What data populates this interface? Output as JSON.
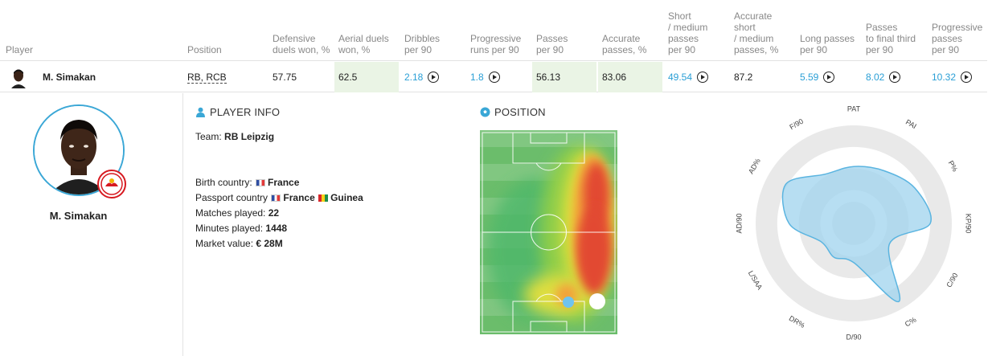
{
  "table": {
    "headers": {
      "player": "Player",
      "position": "Position",
      "defensive_duels": [
        "Defensive",
        "duels won, %"
      ],
      "aerial_duels": [
        "Aerial duels",
        "won, %"
      ],
      "dribbles": [
        "Dribbles",
        "per 90"
      ],
      "progressive_runs": [
        "Progressive",
        "runs per 90"
      ],
      "passes": [
        "Passes",
        "per 90"
      ],
      "accurate_passes": [
        "Accurate",
        "passes, %"
      ],
      "short_medium_passes": [
        "Short",
        "/ medium",
        "passes",
        "per 90"
      ],
      "accurate_short_medium": [
        "Accurate",
        "short",
        "/ medium",
        "passes, %"
      ],
      "long_passes": [
        "Long passes",
        "per 90"
      ],
      "passes_final_third": [
        "Passes",
        "to final third",
        "per 90"
      ],
      "progressive_passes": [
        "Progressive",
        "passes",
        "per 90"
      ]
    },
    "row": {
      "player": "M. Simakan",
      "position": "RB, RCB",
      "defensive_duels": "57.75",
      "aerial_duels": "62.5",
      "dribbles": "2.18",
      "progressive_runs": "1.8",
      "passes": "56.13",
      "accurate_passes": "83.06",
      "short_medium_passes": "49.54",
      "accurate_short_medium": "87.2",
      "long_passes": "5.59",
      "passes_final_third": "8.02",
      "progressive_passes": "10.32"
    }
  },
  "profile": {
    "name": "M. Simakan",
    "player_info_title": "PLAYER INFO",
    "position_title": "POSITION",
    "team_label": "Team:",
    "team_value": "RB Leipzig",
    "birth_country_label": "Birth country:",
    "birth_country_value": "France",
    "passport_label": "Passport country",
    "passport_value_1": "France",
    "passport_value_2": "Guinea",
    "matches_label": "Matches played:",
    "matches_value": "22",
    "minutes_label": "Minutes played:",
    "minutes_value": "1448",
    "market_label": "Market value:",
    "market_value": "€ 28M"
  },
  "radar": {
    "labels": [
      "PAT",
      "PAI",
      "P%",
      "KP/90",
      "C/90",
      "C%",
      "D/90",
      "DR%",
      "L/SAA",
      "AD/90",
      "AD%",
      "F/90"
    ],
    "values": [
      0.58,
      0.62,
      0.72,
      0.78,
      0.42,
      0.92,
      0.4,
      0.4,
      0.38,
      0.66,
      0.8,
      0.58
    ]
  },
  "colors": {
    "accent": "#2a9fd6",
    "highlight": "#eaf4e5",
    "radar_fill": "#9fd3ee",
    "radar_stroke": "#5ab4e0",
    "badge_red": "#d71920"
  },
  "icons": {
    "play": "play-circle-icon",
    "player_info": "person-icon",
    "position": "soccer-ball-icon"
  }
}
